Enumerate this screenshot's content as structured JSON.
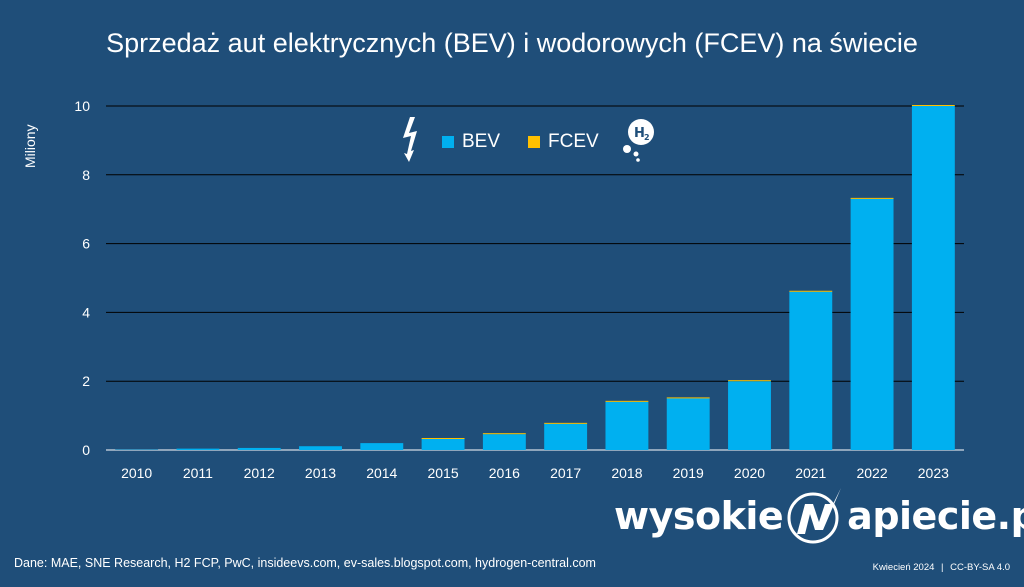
{
  "chart_data": {
    "type": "bar",
    "stacked": true,
    "title": "Sprzedaż aut elektrycznych (BEV) i wodorowych (FCEV) na świecie",
    "ylabel": "Miliony",
    "xlabel": "",
    "ylim": [
      0,
      10
    ],
    "yticks": [
      "0",
      "2",
      "4",
      "6",
      "8",
      "10"
    ],
    "ytick_values": [
      0,
      2,
      4,
      6,
      8,
      10
    ],
    "grid": true,
    "legend_position": "top-center",
    "categories": [
      "2010",
      "2011",
      "2012",
      "2013",
      "2014",
      "2015",
      "2016",
      "2017",
      "2018",
      "2019",
      "2020",
      "2021",
      "2022",
      "2023"
    ],
    "series": [
      {
        "name": "BEV",
        "color": "#00b0f0",
        "values": [
          0.01,
          0.04,
          0.06,
          0.11,
          0.2,
          0.32,
          0.46,
          0.76,
          1.4,
          1.5,
          2.0,
          4.6,
          7.3,
          10.0
        ]
      },
      {
        "name": "FCEV",
        "color": "#ffc000",
        "values": [
          0,
          0,
          0,
          0,
          0,
          0.0006,
          0.0012,
          0.0028,
          0.004,
          0.012,
          0.009,
          0.016,
          0.015,
          0.016
        ]
      }
    ]
  },
  "legend": {
    "bev_label": "BEV",
    "fcev_label": "FCEV",
    "bolt_icon": "lightning-icon",
    "h2_icon": "hydrogen-bubbles-icon",
    "h2_text": "H2"
  },
  "footer": {
    "source": "Dane: MAE, SNE Research, H2 FCP, PwC, insideevs.com, ev-sales.blogspot.com, hydrogen-central.com",
    "date": "Kwiecień 2024",
    "license": "CC-BY-SA 4.0",
    "separator": "|"
  },
  "brand": {
    "part1": "wysokie",
    "part2": "apiecie.pl"
  },
  "colors": {
    "background": "#1f4e79",
    "bev": "#00b0f0",
    "fcev": "#ffc000",
    "gridline": "#000000",
    "text": "#ffffff"
  }
}
